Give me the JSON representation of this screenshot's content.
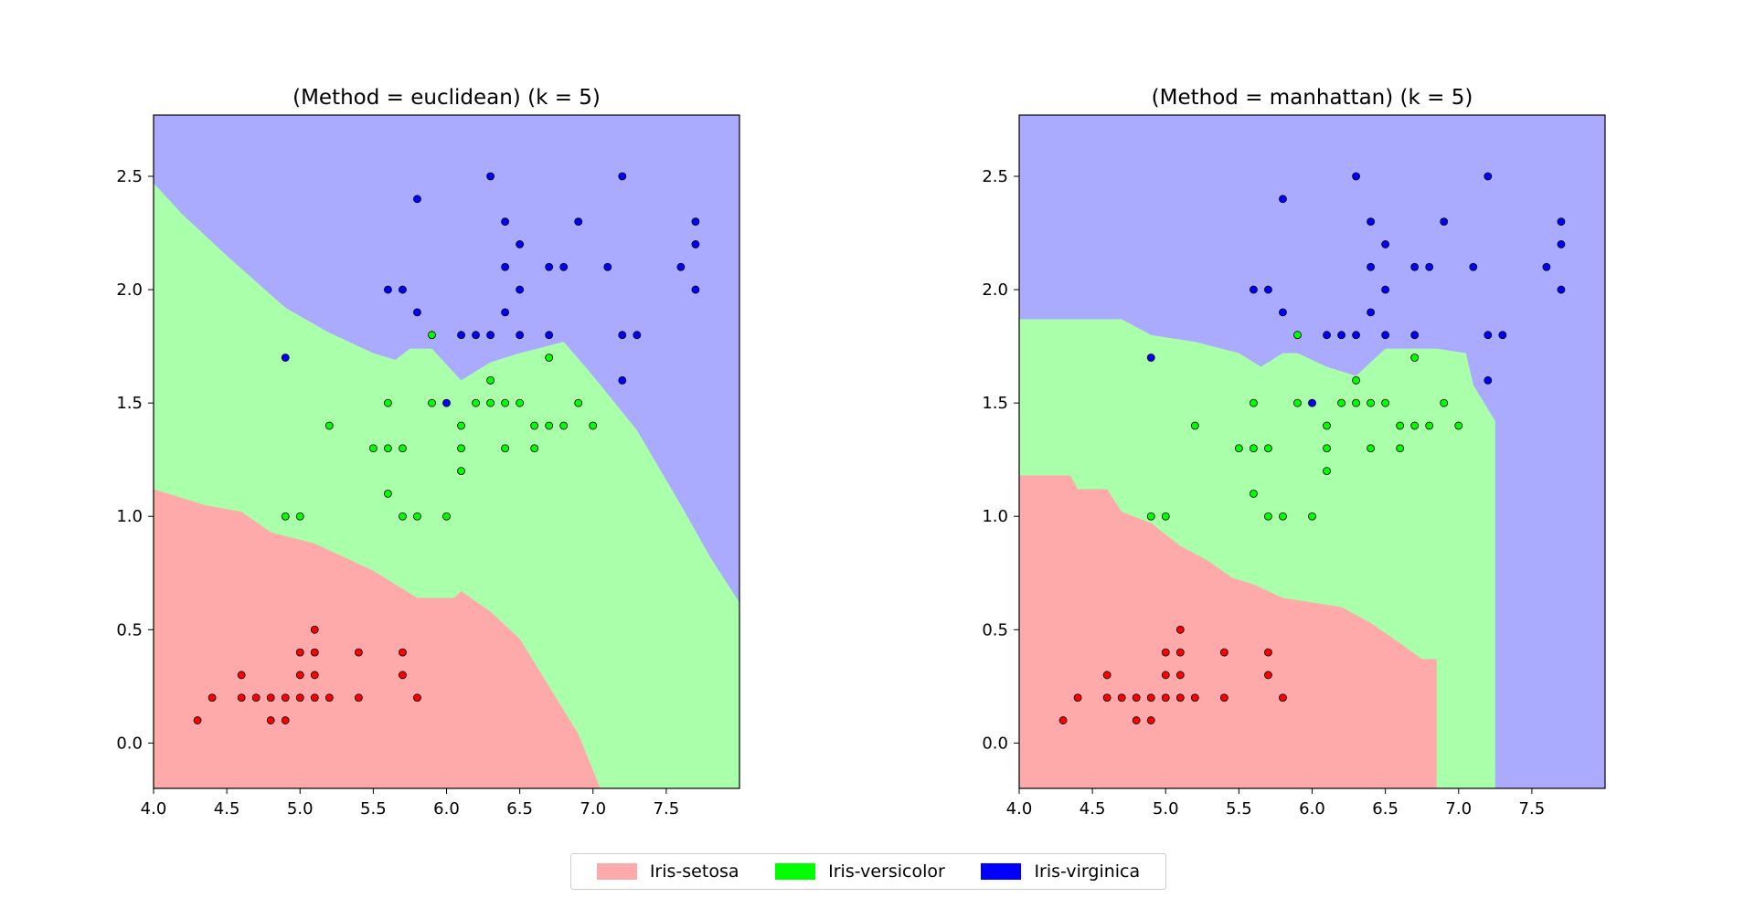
{
  "colors": {
    "region_setosa": "#ffaaaa",
    "region_versicolor": "#aaffaa",
    "region_virginica": "#aaaaff",
    "point_setosa": "#ff0000",
    "point_versicolor": "#00ff00",
    "point_virginica": "#0000ff"
  },
  "legend": {
    "items": [
      {
        "label": "Iris-setosa",
        "color": "#ffaaaa"
      },
      {
        "label": "Iris-versicolor",
        "color": "#00ff00"
      },
      {
        "label": "Iris-virginica",
        "color": "#0000ff"
      }
    ]
  },
  "chart_data": [
    {
      "type": "scatter",
      "title": "(Method = euclidean) (k = 5)",
      "xlim": [
        4.0,
        8.0
      ],
      "ylim": [
        -0.2,
        2.77
      ],
      "xticks": [
        "4.0",
        "4.5",
        "5.0",
        "5.5",
        "6.0",
        "6.5",
        "7.0",
        "7.5"
      ],
      "yticks": [
        "0.0",
        "0.5",
        "1.0",
        "1.5",
        "2.0",
        "2.5"
      ],
      "regions": {
        "setosa_versicolor_boundary": [
          [
            4.0,
            1.12
          ],
          [
            4.1,
            1.1
          ],
          [
            4.35,
            1.05
          ],
          [
            4.6,
            1.02
          ],
          [
            4.8,
            0.93
          ],
          [
            5.1,
            0.88
          ],
          [
            5.3,
            0.82
          ],
          [
            5.5,
            0.76
          ],
          [
            5.8,
            0.64
          ],
          [
            6.05,
            0.64
          ],
          [
            6.1,
            0.67
          ],
          [
            6.3,
            0.58
          ],
          [
            6.5,
            0.46
          ],
          [
            6.7,
            0.25
          ],
          [
            6.9,
            0.04
          ],
          [
            7.05,
            -0.2
          ]
        ],
        "versicolor_virginica_boundary": [
          [
            4.0,
            2.47
          ],
          [
            4.2,
            2.33
          ],
          [
            4.5,
            2.15
          ],
          [
            4.9,
            1.92
          ],
          [
            5.2,
            1.81
          ],
          [
            5.5,
            1.72
          ],
          [
            5.65,
            1.69
          ],
          [
            5.75,
            1.74
          ],
          [
            5.9,
            1.74
          ],
          [
            6.0,
            1.67
          ],
          [
            6.1,
            1.6
          ],
          [
            6.3,
            1.68
          ],
          [
            6.5,
            1.72
          ],
          [
            6.8,
            1.77
          ],
          [
            7.0,
            1.62
          ],
          [
            7.3,
            1.38
          ],
          [
            7.6,
            1.05
          ],
          [
            7.8,
            0.82
          ],
          [
            8.0,
            0.62
          ]
        ]
      },
      "series": [
        {
          "name": "Iris-setosa",
          "points": [
            [
              4.3,
              0.1
            ],
            [
              4.4,
              0.2
            ],
            [
              4.6,
              0.2
            ],
            [
              4.6,
              0.3
            ],
            [
              4.7,
              0.2
            ],
            [
              4.8,
              0.1
            ],
            [
              4.8,
              0.2
            ],
            [
              4.9,
              0.1
            ],
            [
              4.9,
              0.2
            ],
            [
              5.0,
              0.2
            ],
            [
              5.0,
              0.4
            ],
            [
              5.0,
              0.3
            ],
            [
              5.1,
              0.2
            ],
            [
              5.1,
              0.3
            ],
            [
              5.1,
              0.4
            ],
            [
              5.1,
              0.5
            ],
            [
              5.2,
              0.2
            ],
            [
              5.4,
              0.2
            ],
            [
              5.4,
              0.4
            ],
            [
              5.7,
              0.4
            ],
            [
              5.7,
              0.3
            ],
            [
              5.8,
              0.2
            ]
          ]
        },
        {
          "name": "Iris-versicolor",
          "points": [
            [
              4.9,
              1.0
            ],
            [
              5.0,
              1.0
            ],
            [
              5.2,
              1.4
            ],
            [
              5.5,
              1.3
            ],
            [
              5.6,
              1.3
            ],
            [
              5.6,
              1.5
            ],
            [
              5.6,
              1.1
            ],
            [
              5.7,
              1.3
            ],
            [
              5.7,
              1.0
            ],
            [
              5.8,
              1.0
            ],
            [
              5.9,
              1.5
            ],
            [
              5.9,
              1.8
            ],
            [
              6.0,
              1.0
            ],
            [
              6.1,
              1.4
            ],
            [
              6.1,
              1.3
            ],
            [
              6.1,
              1.2
            ],
            [
              6.2,
              1.5
            ],
            [
              6.3,
              1.5
            ],
            [
              6.3,
              1.6
            ],
            [
              6.4,
              1.5
            ],
            [
              6.4,
              1.3
            ],
            [
              6.5,
              1.5
            ],
            [
              6.6,
              1.4
            ],
            [
              6.6,
              1.3
            ],
            [
              6.7,
              1.4
            ],
            [
              6.7,
              1.7
            ],
            [
              6.8,
              1.4
            ],
            [
              6.9,
              1.5
            ],
            [
              7.0,
              1.4
            ]
          ]
        },
        {
          "name": "Iris-virginica",
          "points": [
            [
              4.9,
              1.7
            ],
            [
              5.6,
              2.0
            ],
            [
              5.7,
              2.0
            ],
            [
              5.8,
              2.4
            ],
            [
              5.8,
              1.9
            ],
            [
              6.0,
              1.5
            ],
            [
              6.1,
              1.8
            ],
            [
              6.2,
              1.8
            ],
            [
              6.3,
              1.8
            ],
            [
              6.3,
              2.5
            ],
            [
              6.4,
              2.3
            ],
            [
              6.4,
              2.1
            ],
            [
              6.4,
              1.9
            ],
            [
              6.5,
              2.2
            ],
            [
              6.5,
              2.0
            ],
            [
              6.5,
              1.8
            ],
            [
              6.7,
              2.1
            ],
            [
              6.7,
              1.8
            ],
            [
              6.8,
              2.1
            ],
            [
              6.9,
              2.3
            ],
            [
              7.1,
              2.1
            ],
            [
              7.2,
              2.5
            ],
            [
              7.2,
              1.8
            ],
            [
              7.2,
              1.6
            ],
            [
              7.3,
              1.8
            ],
            [
              7.6,
              2.1
            ],
            [
              7.7,
              2.3
            ],
            [
              7.7,
              2.2
            ],
            [
              7.7,
              2.0
            ]
          ]
        }
      ]
    },
    {
      "type": "scatter",
      "title": "(Method = manhattan) (k = 5)",
      "xlim": [
        4.0,
        8.0
      ],
      "ylim": [
        -0.2,
        2.77
      ],
      "xticks": [
        "4.0",
        "4.5",
        "5.0",
        "5.5",
        "6.0",
        "6.5",
        "7.0",
        "7.5"
      ],
      "yticks": [
        "0.0",
        "0.5",
        "1.0",
        "1.5",
        "2.0",
        "2.5"
      ],
      "regions": {
        "setosa_versicolor_boundary": [
          [
            4.0,
            1.18
          ],
          [
            4.35,
            1.18
          ],
          [
            4.4,
            1.12
          ],
          [
            4.6,
            1.12
          ],
          [
            4.7,
            1.02
          ],
          [
            4.9,
            0.97
          ],
          [
            5.1,
            0.87
          ],
          [
            5.3,
            0.8
          ],
          [
            5.45,
            0.73
          ],
          [
            5.6,
            0.7
          ],
          [
            5.8,
            0.64
          ],
          [
            6.0,
            0.62
          ],
          [
            6.2,
            0.6
          ],
          [
            6.4,
            0.53
          ],
          [
            6.6,
            0.44
          ],
          [
            6.75,
            0.37
          ],
          [
            6.85,
            0.37
          ],
          [
            6.85,
            -0.2
          ]
        ],
        "versicolor_virginica_boundary": [
          [
            4.0,
            1.87
          ],
          [
            4.7,
            1.87
          ],
          [
            4.9,
            1.8
          ],
          [
            5.2,
            1.77
          ],
          [
            5.5,
            1.72
          ],
          [
            5.65,
            1.66
          ],
          [
            5.8,
            1.72
          ],
          [
            5.9,
            1.72
          ],
          [
            6.1,
            1.66
          ],
          [
            6.3,
            1.62
          ],
          [
            6.5,
            1.74
          ],
          [
            6.85,
            1.74
          ],
          [
            7.05,
            1.72
          ],
          [
            7.1,
            1.58
          ],
          [
            7.25,
            1.42
          ],
          [
            7.25,
            -0.2
          ]
        ]
      },
      "series": [
        {
          "name": "Iris-setosa",
          "points": [
            [
              4.3,
              0.1
            ],
            [
              4.4,
              0.2
            ],
            [
              4.6,
              0.2
            ],
            [
              4.6,
              0.3
            ],
            [
              4.7,
              0.2
            ],
            [
              4.8,
              0.1
            ],
            [
              4.8,
              0.2
            ],
            [
              4.9,
              0.1
            ],
            [
              4.9,
              0.2
            ],
            [
              5.0,
              0.2
            ],
            [
              5.0,
              0.4
            ],
            [
              5.0,
              0.3
            ],
            [
              5.1,
              0.2
            ],
            [
              5.1,
              0.3
            ],
            [
              5.1,
              0.4
            ],
            [
              5.1,
              0.5
            ],
            [
              5.2,
              0.2
            ],
            [
              5.4,
              0.2
            ],
            [
              5.4,
              0.4
            ],
            [
              5.7,
              0.4
            ],
            [
              5.7,
              0.3
            ],
            [
              5.8,
              0.2
            ]
          ]
        },
        {
          "name": "Iris-versicolor",
          "points": [
            [
              4.9,
              1.0
            ],
            [
              5.0,
              1.0
            ],
            [
              5.2,
              1.4
            ],
            [
              5.5,
              1.3
            ],
            [
              5.6,
              1.3
            ],
            [
              5.6,
              1.5
            ],
            [
              5.6,
              1.1
            ],
            [
              5.7,
              1.3
            ],
            [
              5.7,
              1.0
            ],
            [
              5.8,
              1.0
            ],
            [
              5.9,
              1.5
            ],
            [
              5.9,
              1.8
            ],
            [
              6.0,
              1.0
            ],
            [
              6.1,
              1.4
            ],
            [
              6.1,
              1.3
            ],
            [
              6.1,
              1.2
            ],
            [
              6.2,
              1.5
            ],
            [
              6.3,
              1.5
            ],
            [
              6.3,
              1.6
            ],
            [
              6.4,
              1.5
            ],
            [
              6.4,
              1.3
            ],
            [
              6.5,
              1.5
            ],
            [
              6.6,
              1.4
            ],
            [
              6.6,
              1.3
            ],
            [
              6.7,
              1.4
            ],
            [
              6.7,
              1.7
            ],
            [
              6.8,
              1.4
            ],
            [
              6.9,
              1.5
            ],
            [
              7.0,
              1.4
            ]
          ]
        },
        {
          "name": "Iris-virginica",
          "points": [
            [
              4.9,
              1.7
            ],
            [
              5.6,
              2.0
            ],
            [
              5.7,
              2.0
            ],
            [
              5.8,
              2.4
            ],
            [
              5.8,
              1.9
            ],
            [
              6.0,
              1.5
            ],
            [
              6.1,
              1.8
            ],
            [
              6.2,
              1.8
            ],
            [
              6.3,
              1.8
            ],
            [
              6.3,
              2.5
            ],
            [
              6.4,
              2.3
            ],
            [
              6.4,
              2.1
            ],
            [
              6.4,
              1.9
            ],
            [
              6.5,
              2.2
            ],
            [
              6.5,
              2.0
            ],
            [
              6.5,
              1.8
            ],
            [
              6.7,
              2.1
            ],
            [
              6.7,
              1.8
            ],
            [
              6.8,
              2.1
            ],
            [
              6.9,
              2.3
            ],
            [
              7.1,
              2.1
            ],
            [
              7.2,
              2.5
            ],
            [
              7.2,
              1.8
            ],
            [
              7.2,
              1.6
            ],
            [
              7.3,
              1.8
            ],
            [
              7.6,
              2.1
            ],
            [
              7.7,
              2.3
            ],
            [
              7.7,
              2.2
            ],
            [
              7.7,
              2.0
            ]
          ]
        }
      ]
    }
  ]
}
